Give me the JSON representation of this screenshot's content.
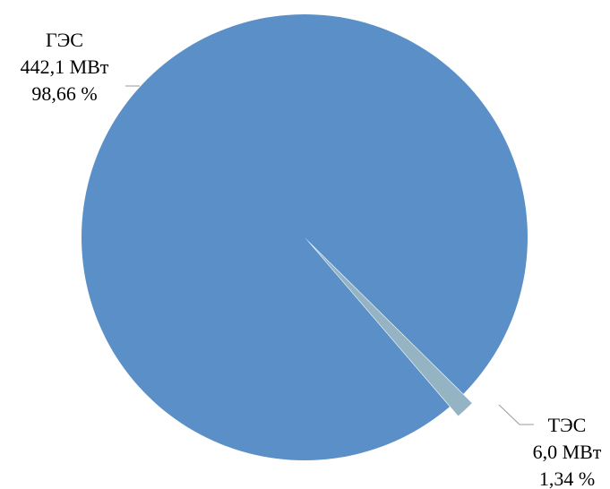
{
  "chart_data": {
    "type": "pie",
    "title": "",
    "legend": "none",
    "slices": [
      {
        "name": "ГЭС",
        "value_label": "442,1 МВт",
        "percent_label": "98,66 %",
        "value": 442.1,
        "percent": 98.66,
        "color": "#5b8fc7"
      },
      {
        "name": "ТЭС",
        "value_label": "6,0 МВт",
        "percent_label": "1,34 %",
        "value": 6.0,
        "percent": 1.34,
        "color": "#94b3c3",
        "exploded": true
      }
    ]
  }
}
